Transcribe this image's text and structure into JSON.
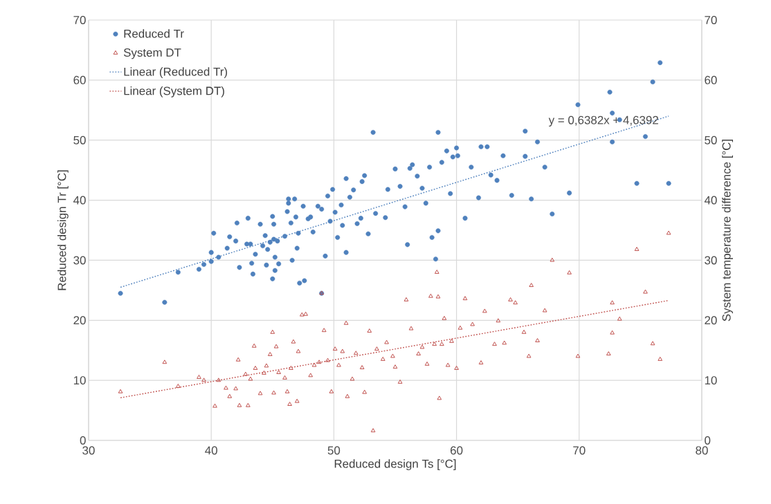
{
  "chart_data": {
    "type": "scatter",
    "xlabel": "Reduced design Ts [°C]",
    "ylabel": "Reduced design Tr [°C]",
    "y2label": "System temperature difference [°C]",
    "xlim": [
      30,
      80
    ],
    "xticks": [
      30,
      40,
      50,
      60,
      70,
      80
    ],
    "ylim": [
      0,
      70
    ],
    "yticks": [
      0,
      10,
      20,
      30,
      40,
      50,
      60,
      70
    ],
    "y2lim": [
      0,
      70
    ],
    "y2ticks": [
      0,
      10,
      20,
      30,
      40,
      50,
      60,
      70
    ],
    "grid": true,
    "legend": "top left",
    "annotations": [
      {
        "text": "y = 0,6382x + 4,6392",
        "x": 72,
        "y": 50.6
      }
    ],
    "series": [
      {
        "name": "Reduced Tr",
        "marker": "circle",
        "color": "#4f81bd",
        "x": [
          32.6,
          36.2,
          37.3,
          39.0,
          39.4,
          40.0,
          40.0,
          40.2,
          40.6,
          41.3,
          41.5,
          42.0,
          42.1,
          42.3,
          42.9,
          43.0,
          43.2,
          43.3,
          43.4,
          43.6,
          44.0,
          44.2,
          44.4,
          44.5,
          44.6,
          44.8,
          45.0,
          45.0,
          45.1,
          45.1,
          45.2,
          45.2,
          45.4,
          45.5,
          46.0,
          46.2,
          46.3,
          46.3,
          46.5,
          46.6,
          46.8,
          46.9,
          47.0,
          47.1,
          47.2,
          47.5,
          47.6,
          47.9,
          48.1,
          48.3,
          48.7,
          49.0,
          49.0,
          49.3,
          49.5,
          49.7,
          49.9,
          50.1,
          50.3,
          50.6,
          50.7,
          51.0,
          51.0,
          51.3,
          51.6,
          51.9,
          52.2,
          52.3,
          52.5,
          52.8,
          53.2,
          53.4,
          54.2,
          54.4,
          55.0,
          55.4,
          55.8,
          56.0,
          56.2,
          56.4,
          56.8,
          57.2,
          57.5,
          57.8,
          58.0,
          58.3,
          58.5,
          58.5,
          58.8,
          59.2,
          59.5,
          59.7,
          60.0,
          60.1,
          60.7,
          61.2,
          61.8,
          62.0,
          62.5,
          62.8,
          63.3,
          63.8,
          64.5,
          65.6,
          65.6,
          66.1,
          66.6,
          67.2,
          67.8,
          69.2,
          69.9,
          72.5,
          72.7,
          72.7,
          73.3,
          74.7,
          75.4,
          76.0,
          76.6,
          77.3
        ],
        "values": [
          24.5,
          23.0,
          28.0,
          28.5,
          29.3,
          31.3,
          29.8,
          34.5,
          30.5,
          32.0,
          33.9,
          33.2,
          36.2,
          28.8,
          32.7,
          37.0,
          32.7,
          29.5,
          27.7,
          31.0,
          36.0,
          32.4,
          34.1,
          29.2,
          31.8,
          33.0,
          26.9,
          37.3,
          36.0,
          33.5,
          30.5,
          28.3,
          33.2,
          29.4,
          34.0,
          38.1,
          40.2,
          39.5,
          36.2,
          30.0,
          40.2,
          37.2,
          32.0,
          34.5,
          26.2,
          39.0,
          26.6,
          36.9,
          37.2,
          34.7,
          39.0,
          38.5,
          24.5,
          30.7,
          40.7,
          36.5,
          41.8,
          38.0,
          33.8,
          39.2,
          35.8,
          43.6,
          31.3,
          40.5,
          41.7,
          36.1,
          37.0,
          43.1,
          44.1,
          34.4,
          51.3,
          37.8,
          37.1,
          41.8,
          45.2,
          42.3,
          38.9,
          32.6,
          45.3,
          45.9,
          44.0,
          42.0,
          39.5,
          45.5,
          33.8,
          30.2,
          34.9,
          51.3,
          46.3,
          48.2,
          41.1,
          47.2,
          48.7,
          47.4,
          37.0,
          45.5,
          40.4,
          48.9,
          48.9,
          44.2,
          43.3,
          47.4,
          40.8,
          51.5,
          47.3,
          40.2,
          49.7,
          45.5,
          37.7,
          41.2,
          55.9,
          58.0,
          54.5,
          49.7,
          53.4,
          42.8,
          50.6,
          59.7,
          62.9,
          42.8
        ]
      },
      {
        "name": "System DT",
        "marker": "triangle",
        "axis": "y2",
        "color": "#c0504d",
        "x": [
          32.6,
          36.2,
          37.3,
          39.0,
          39.4,
          40.3,
          40.6,
          41.2,
          41.5,
          42.0,
          42.2,
          42.3,
          42.8,
          43.0,
          43.2,
          43.5,
          43.6,
          44.0,
          44.3,
          44.5,
          44.8,
          45.0,
          45.1,
          45.3,
          45.5,
          46.0,
          46.2,
          46.4,
          46.5,
          46.7,
          47.0,
          47.1,
          47.4,
          47.7,
          48.1,
          48.4,
          48.8,
          49.0,
          49.2,
          49.5,
          49.8,
          50.1,
          50.4,
          50.7,
          51.0,
          51.1,
          51.5,
          51.8,
          52.3,
          52.5,
          52.9,
          53.2,
          53.5,
          54.0,
          54.3,
          54.8,
          55.0,
          55.4,
          55.9,
          56.3,
          56.9,
          57.2,
          57.6,
          57.9,
          58.2,
          58.4,
          58.5,
          58.6,
          58.8,
          59.0,
          59.3,
          59.6,
          60.0,
          60.3,
          60.7,
          61.3,
          62.0,
          62.3,
          63.1,
          63.4,
          63.9,
          64.4,
          64.8,
          65.5,
          65.9,
          66.1,
          66.6,
          67.2,
          67.8,
          69.2,
          69.9,
          72.4,
          72.7,
          72.7,
          73.3,
          74.7,
          75.4,
          76.0,
          76.6,
          77.3
        ],
        "values": [
          8.1,
          13.0,
          9.0,
          10.5,
          10.0,
          5.7,
          10.0,
          8.7,
          7.3,
          8.6,
          13.4,
          5.8,
          11.0,
          5.8,
          10.2,
          15.7,
          12.0,
          7.8,
          11.2,
          12.4,
          14.3,
          18.0,
          7.9,
          15.6,
          11.3,
          10.4,
          8.1,
          6.0,
          12.0,
          16.4,
          6.5,
          14.8,
          20.9,
          21.0,
          10.8,
          12.5,
          13.0,
          24.5,
          18.3,
          13.3,
          8.1,
          15.2,
          12.5,
          14.8,
          19.5,
          7.3,
          10.2,
          14.5,
          12.1,
          8.0,
          18.2,
          1.6,
          15.2,
          13.5,
          16.3,
          14.0,
          12.2,
          9.7,
          23.4,
          18.6,
          14.4,
          15.5,
          12.7,
          24.0,
          16.0,
          28.0,
          23.9,
          7.0,
          16.0,
          20.3,
          12.5,
          16.5,
          12.0,
          18.7,
          23.6,
          19.3,
          12.9,
          21.5,
          16.0,
          19.9,
          16.2,
          23.4,
          22.9,
          18.0,
          14.0,
          25.8,
          16.6,
          21.6,
          30.0,
          27.9,
          14.0,
          14.4,
          22.9,
          17.9,
          20.2,
          31.8,
          24.7,
          16.1,
          13.5,
          34.5
        ]
      },
      {
        "name": "Linear (Reduced Tr)",
        "type": "line",
        "line_style": "dotted",
        "marker": "none",
        "color": "#4f81bd",
        "x": [
          32.6,
          77.3
        ],
        "values": [
          25.5,
          54.0
        ]
      },
      {
        "name": "Linear (System DT)",
        "type": "line",
        "line_style": "dotted",
        "marker": "none",
        "axis": "y2",
        "color": "#c0504d",
        "x": [
          32.6,
          77.3
        ],
        "values": [
          7.1,
          23.3
        ]
      }
    ]
  }
}
